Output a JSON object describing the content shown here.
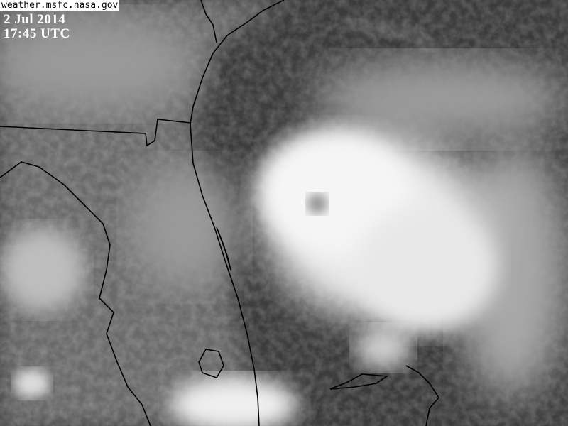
{
  "source": "weather.msfc.nasa.gov",
  "date": "2 Jul 2014",
  "time": "17:45 UTC",
  "colors": {
    "ocean": "#3b3b3b",
    "cloud": "#f2f2f2",
    "coastline": "#000000",
    "label_bg": "#ffffff"
  }
}
